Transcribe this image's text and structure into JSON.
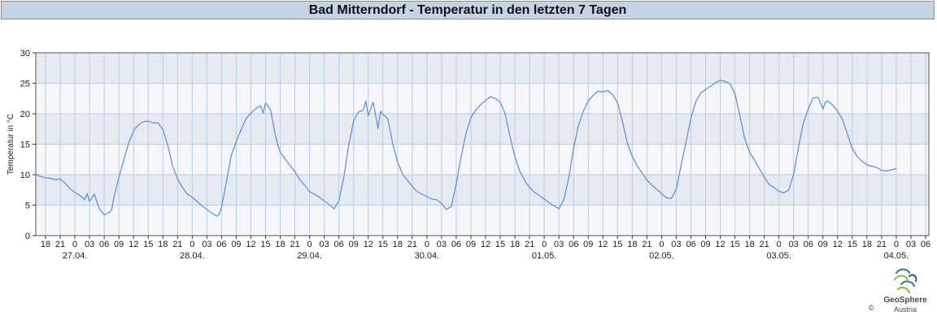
{
  "title": "Bad Mitterndorf - Temperatur in den letzten 7 Tagen",
  "logo": {
    "brand": "GeoSphere",
    "sub": "Austria",
    "copyright": "©"
  },
  "colors": {
    "line": "#5b8ad8",
    "band_dark": "#e6ebf2",
    "band_light": "#f5f7fa",
    "grid": "#b9cde3",
    "title_bg": "#c6d3e3"
  },
  "chart_data": {
    "type": "line",
    "title": "Bad Mitterndorf - Temperatur in den letzten 7 Tagen",
    "ylabel": "Temperatur in °C",
    "xlabel": "",
    "ylim": [
      0,
      30
    ],
    "yticks": [
      0,
      5,
      10,
      15,
      20,
      25,
      30
    ],
    "xlim": [
      "2025-04-26T16:00",
      "2025-05-04T06:40"
    ],
    "hour_ticks": [
      {
        "t": "2025-04-26T18:00",
        "label": "18"
      },
      {
        "t": "2025-04-26T21:00",
        "label": "21"
      },
      {
        "t": "2025-04-27T00:00",
        "label": "0"
      },
      {
        "t": "2025-04-27T03:00",
        "label": "03"
      },
      {
        "t": "2025-04-27T06:00",
        "label": "06"
      },
      {
        "t": "2025-04-27T09:00",
        "label": "09"
      },
      {
        "t": "2025-04-27T12:00",
        "label": "12"
      },
      {
        "t": "2025-04-27T15:00",
        "label": "15"
      },
      {
        "t": "2025-04-27T18:00",
        "label": "18"
      },
      {
        "t": "2025-04-27T21:00",
        "label": "21"
      },
      {
        "t": "2025-04-28T00:00",
        "label": "0"
      },
      {
        "t": "2025-04-28T03:00",
        "label": "03"
      },
      {
        "t": "2025-04-28T06:00",
        "label": "06"
      },
      {
        "t": "2025-04-28T09:00",
        "label": "09"
      },
      {
        "t": "2025-04-28T12:00",
        "label": "12"
      },
      {
        "t": "2025-04-28T15:00",
        "label": "15"
      },
      {
        "t": "2025-04-28T18:00",
        "label": "18"
      },
      {
        "t": "2025-04-28T21:00",
        "label": "21"
      },
      {
        "t": "2025-04-29T00:00",
        "label": "0"
      },
      {
        "t": "2025-04-29T03:00",
        "label": "03"
      },
      {
        "t": "2025-04-29T06:00",
        "label": "06"
      },
      {
        "t": "2025-04-29T09:00",
        "label": "09"
      },
      {
        "t": "2025-04-29T12:00",
        "label": "12"
      },
      {
        "t": "2025-04-29T15:00",
        "label": "15"
      },
      {
        "t": "2025-04-29T18:00",
        "label": "18"
      },
      {
        "t": "2025-04-29T21:00",
        "label": "21"
      },
      {
        "t": "2025-04-30T00:00",
        "label": "0"
      },
      {
        "t": "2025-04-30T03:00",
        "label": "03"
      },
      {
        "t": "2025-04-30T06:00",
        "label": "06"
      },
      {
        "t": "2025-04-30T09:00",
        "label": "09"
      },
      {
        "t": "2025-04-30T12:00",
        "label": "12"
      },
      {
        "t": "2025-04-30T15:00",
        "label": "15"
      },
      {
        "t": "2025-04-30T18:00",
        "label": "18"
      },
      {
        "t": "2025-04-30T21:00",
        "label": "21"
      },
      {
        "t": "2025-05-01T00:00",
        "label": "0"
      },
      {
        "t": "2025-05-01T03:00",
        "label": "03"
      },
      {
        "t": "2025-05-01T06:00",
        "label": "06"
      },
      {
        "t": "2025-05-01T09:00",
        "label": "09"
      },
      {
        "t": "2025-05-01T12:00",
        "label": "12"
      },
      {
        "t": "2025-05-01T15:00",
        "label": "15"
      },
      {
        "t": "2025-05-01T18:00",
        "label": "18"
      },
      {
        "t": "2025-05-01T21:00",
        "label": "21"
      },
      {
        "t": "2025-05-02T00:00",
        "label": "0"
      },
      {
        "t": "2025-05-02T03:00",
        "label": "03"
      },
      {
        "t": "2025-05-02T06:00",
        "label": "06"
      },
      {
        "t": "2025-05-02T09:00",
        "label": "09"
      },
      {
        "t": "2025-05-02T12:00",
        "label": "12"
      },
      {
        "t": "2025-05-02T15:00",
        "label": "15"
      },
      {
        "t": "2025-05-02T18:00",
        "label": "18"
      },
      {
        "t": "2025-05-02T21:00",
        "label": "21"
      },
      {
        "t": "2025-05-03T00:00",
        "label": "0"
      },
      {
        "t": "2025-05-03T03:00",
        "label": "03"
      },
      {
        "t": "2025-05-03T06:00",
        "label": "06"
      },
      {
        "t": "2025-05-03T09:00",
        "label": "09"
      },
      {
        "t": "2025-05-03T12:00",
        "label": "12"
      },
      {
        "t": "2025-05-03T15:00",
        "label": "15"
      },
      {
        "t": "2025-05-03T18:00",
        "label": "18"
      },
      {
        "t": "2025-05-03T21:00",
        "label": "21"
      },
      {
        "t": "2025-05-04T00:00",
        "label": "0"
      },
      {
        "t": "2025-05-04T03:00",
        "label": "03"
      },
      {
        "t": "2025-05-04T06:00",
        "label": "06"
      }
    ],
    "date_ticks": [
      {
        "t": "2025-04-27T00:00",
        "label": "27.04."
      },
      {
        "t": "2025-04-28T00:00",
        "label": "28.04."
      },
      {
        "t": "2025-04-29T00:00",
        "label": "29.04."
      },
      {
        "t": "2025-04-30T00:00",
        "label": "30.04."
      },
      {
        "t": "2025-05-01T00:00",
        "label": "01.05."
      },
      {
        "t": "2025-05-02T00:00",
        "label": "02.05."
      },
      {
        "t": "2025-05-03T00:00",
        "label": "03.05."
      },
      {
        "t": "2025-05-04T00:00",
        "label": "04.05."
      }
    ],
    "grid": true,
    "series": [
      {
        "points": [
          [
            "2025-04-26T16:00",
            10.1
          ],
          [
            "2025-04-26T17:00",
            9.7
          ],
          [
            "2025-04-26T18:00",
            9.5
          ],
          [
            "2025-04-26T19:00",
            9.4
          ],
          [
            "2025-04-26T20:00",
            9.2
          ],
          [
            "2025-04-26T21:00",
            9.3
          ],
          [
            "2025-04-26T22:00",
            8.6
          ],
          [
            "2025-04-26T23:00",
            7.7
          ],
          [
            "2025-04-27T00:00",
            7.1
          ],
          [
            "2025-04-27T01:00",
            6.6
          ],
          [
            "2025-04-27T02:00",
            5.9
          ],
          [
            "2025-04-27T02:30",
            6.9
          ],
          [
            "2025-04-27T03:00",
            5.6
          ],
          [
            "2025-04-27T04:00",
            6.8
          ],
          [
            "2025-04-27T05:00",
            4.4
          ],
          [
            "2025-04-27T06:00",
            3.4
          ],
          [
            "2025-04-27T07:00",
            3.8
          ],
          [
            "2025-04-27T07:30",
            4.2
          ],
          [
            "2025-04-27T08:00",
            6.4
          ],
          [
            "2025-04-27T09:00",
            9.6
          ],
          [
            "2025-04-27T10:00",
            12.4
          ],
          [
            "2025-04-27T11:00",
            15.2
          ],
          [
            "2025-04-27T12:00",
            17.2
          ],
          [
            "2025-04-27T13:00",
            18.2
          ],
          [
            "2025-04-27T14:00",
            18.7
          ],
          [
            "2025-04-27T15:00",
            18.8
          ],
          [
            "2025-04-27T16:00",
            18.5
          ],
          [
            "2025-04-27T17:00",
            18.5
          ],
          [
            "2025-04-27T18:00",
            17.4
          ],
          [
            "2025-04-27T19:00",
            14.8
          ],
          [
            "2025-04-27T20:00",
            11.4
          ],
          [
            "2025-04-27T21:00",
            9.3
          ],
          [
            "2025-04-27T22:00",
            7.9
          ],
          [
            "2025-04-27T23:00",
            6.8
          ],
          [
            "2025-04-28T00:00",
            6.3
          ],
          [
            "2025-04-28T01:00",
            5.6
          ],
          [
            "2025-04-28T02:00",
            4.9
          ],
          [
            "2025-04-28T03:00",
            4.3
          ],
          [
            "2025-04-28T04:00",
            3.7
          ],
          [
            "2025-04-28T05:00",
            3.2
          ],
          [
            "2025-04-28T05:30",
            3.5
          ],
          [
            "2025-04-28T06:00",
            4.7
          ],
          [
            "2025-04-28T07:00",
            8.8
          ],
          [
            "2025-04-28T08:00",
            13.2
          ],
          [
            "2025-04-28T09:00",
            15.4
          ],
          [
            "2025-04-28T10:00",
            17.4
          ],
          [
            "2025-04-28T11:00",
            19.2
          ],
          [
            "2025-04-28T12:00",
            20.1
          ],
          [
            "2025-04-28T13:00",
            20.9
          ],
          [
            "2025-04-28T14:00",
            21.3
          ],
          [
            "2025-04-28T14:30",
            20.1
          ],
          [
            "2025-04-28T15:00",
            21.8
          ],
          [
            "2025-04-28T16:00",
            20.7
          ],
          [
            "2025-04-28T17:00",
            16.5
          ],
          [
            "2025-04-28T17:30",
            14.9
          ],
          [
            "2025-04-28T18:00",
            13.7
          ],
          [
            "2025-04-28T19:00",
            12.6
          ],
          [
            "2025-04-28T20:00",
            11.5
          ],
          [
            "2025-04-28T21:00",
            10.5
          ],
          [
            "2025-04-28T22:00",
            9.2
          ],
          [
            "2025-04-28T23:00",
            8.3
          ],
          [
            "2025-04-29T00:00",
            7.2
          ],
          [
            "2025-04-29T01:00",
            6.8
          ],
          [
            "2025-04-29T02:00",
            6.3
          ],
          [
            "2025-04-29T03:00",
            5.7
          ],
          [
            "2025-04-29T04:00",
            5.1
          ],
          [
            "2025-04-29T05:00",
            4.4
          ],
          [
            "2025-04-29T06:00",
            5.7
          ],
          [
            "2025-04-29T07:00",
            9.6
          ],
          [
            "2025-04-29T08:00",
            14.8
          ],
          [
            "2025-04-29T09:00",
            18.8
          ],
          [
            "2025-04-29T10:00",
            20.3
          ],
          [
            "2025-04-29T11:00",
            20.6
          ],
          [
            "2025-04-29T11:30",
            22.1
          ],
          [
            "2025-04-29T12:00",
            19.7
          ],
          [
            "2025-04-29T13:00",
            21.9
          ],
          [
            "2025-04-29T14:00",
            17.6
          ],
          [
            "2025-04-29T14:30",
            20.4
          ],
          [
            "2025-04-29T15:00",
            19.9
          ],
          [
            "2025-04-29T16:00",
            19.2
          ],
          [
            "2025-04-29T17:00",
            15.1
          ],
          [
            "2025-04-29T18:00",
            12.1
          ],
          [
            "2025-04-29T19:00",
            10.1
          ],
          [
            "2025-04-29T20:00",
            9.1
          ],
          [
            "2025-04-29T21:00",
            8.1
          ],
          [
            "2025-04-29T22:00",
            7.2
          ],
          [
            "2025-04-29T23:00",
            6.8
          ],
          [
            "2025-04-30T00:00",
            6.4
          ],
          [
            "2025-04-30T01:00",
            6.0
          ],
          [
            "2025-04-30T02:00",
            5.9
          ],
          [
            "2025-04-30T03:00",
            5.3
          ],
          [
            "2025-04-30T04:00",
            4.3
          ],
          [
            "2025-04-30T05:00",
            4.8
          ],
          [
            "2025-04-30T06:00",
            8.5
          ],
          [
            "2025-04-30T07:00",
            13.0
          ],
          [
            "2025-04-30T08:00",
            16.8
          ],
          [
            "2025-04-30T09:00",
            19.4
          ],
          [
            "2025-04-30T10:00",
            20.6
          ],
          [
            "2025-04-30T11:00",
            21.5
          ],
          [
            "2025-04-30T12:00",
            22.2
          ],
          [
            "2025-04-30T13:00",
            22.8
          ],
          [
            "2025-04-30T14:00",
            22.5
          ],
          [
            "2025-04-30T15:00",
            21.9
          ],
          [
            "2025-04-30T16:00",
            20.0
          ],
          [
            "2025-04-30T17:00",
            16.2
          ],
          [
            "2025-04-30T18:00",
            12.9
          ],
          [
            "2025-04-30T19:00",
            10.6
          ],
          [
            "2025-04-30T20:00",
            9.0
          ],
          [
            "2025-04-30T21:00",
            7.9
          ],
          [
            "2025-04-30T22:00",
            7.1
          ],
          [
            "2025-04-30T23:00",
            6.6
          ],
          [
            "2025-05-01T00:00",
            6.0
          ],
          [
            "2025-05-01T01:00",
            5.4
          ],
          [
            "2025-05-01T02:00",
            4.9
          ],
          [
            "2025-05-01T03:00",
            4.4
          ],
          [
            "2025-05-01T04:00",
            5.9
          ],
          [
            "2025-05-01T05:00",
            9.4
          ],
          [
            "2025-05-01T06:00",
            14.3
          ],
          [
            "2025-05-01T07:00",
            18.1
          ],
          [
            "2025-05-01T08:00",
            20.4
          ],
          [
            "2025-05-01T09:00",
            22.1
          ],
          [
            "2025-05-01T10:00",
            23.0
          ],
          [
            "2025-05-01T11:00",
            23.7
          ],
          [
            "2025-05-01T12:00",
            23.6
          ],
          [
            "2025-05-01T13:00",
            23.8
          ],
          [
            "2025-05-01T14:00",
            23.1
          ],
          [
            "2025-05-01T15:00",
            21.8
          ],
          [
            "2025-05-01T16:00",
            18.7
          ],
          [
            "2025-05-01T17:00",
            15.2
          ],
          [
            "2025-05-01T18:00",
            13.0
          ],
          [
            "2025-05-01T19:00",
            11.5
          ],
          [
            "2025-05-01T20:00",
            10.3
          ],
          [
            "2025-05-01T21:00",
            9.1
          ],
          [
            "2025-05-01T22:00",
            8.3
          ],
          [
            "2025-05-01T23:00",
            7.6
          ],
          [
            "2025-05-02T00:00",
            6.9
          ],
          [
            "2025-05-02T01:00",
            6.2
          ],
          [
            "2025-05-02T02:00",
            6.1
          ],
          [
            "2025-05-02T03:00",
            7.6
          ],
          [
            "2025-05-02T04:00",
            11.6
          ],
          [
            "2025-05-02T05:00",
            15.4
          ],
          [
            "2025-05-02T06:00",
            19.3
          ],
          [
            "2025-05-02T07:00",
            22.0
          ],
          [
            "2025-05-02T08:00",
            23.4
          ],
          [
            "2025-05-02T09:00",
            24.0
          ],
          [
            "2025-05-02T10:00",
            24.5
          ],
          [
            "2025-05-02T11:00",
            25.1
          ],
          [
            "2025-05-02T12:00",
            25.5
          ],
          [
            "2025-05-02T13:00",
            25.3
          ],
          [
            "2025-05-02T14:00",
            24.9
          ],
          [
            "2025-05-02T15:00",
            23.3
          ],
          [
            "2025-05-02T16:00",
            19.7
          ],
          [
            "2025-05-02T17:00",
            15.9
          ],
          [
            "2025-05-02T18:00",
            13.7
          ],
          [
            "2025-05-02T19:00",
            12.4
          ],
          [
            "2025-05-02T20:00",
            11.0
          ],
          [
            "2025-05-02T21:00",
            9.6
          ],
          [
            "2025-05-02T22:00",
            8.4
          ],
          [
            "2025-05-02T23:00",
            7.9
          ],
          [
            "2025-05-03T00:00",
            7.3
          ],
          [
            "2025-05-03T01:00",
            7.0
          ],
          [
            "2025-05-03T02:00",
            7.5
          ],
          [
            "2025-05-03T03:00",
            10.0
          ],
          [
            "2025-05-03T04:00",
            14.5
          ],
          [
            "2025-05-03T05:00",
            18.5
          ],
          [
            "2025-05-03T06:00",
            20.8
          ],
          [
            "2025-05-03T07:00",
            22.6
          ],
          [
            "2025-05-03T08:00",
            22.7
          ],
          [
            "2025-05-03T09:00",
            20.8
          ],
          [
            "2025-05-03T09:30",
            21.9
          ],
          [
            "2025-05-03T10:00",
            22.1
          ],
          [
            "2025-05-03T11:00",
            21.4
          ],
          [
            "2025-05-03T12:00",
            20.4
          ],
          [
            "2025-05-03T13:00",
            19.1
          ],
          [
            "2025-05-03T14:00",
            16.7
          ],
          [
            "2025-05-03T15:00",
            14.3
          ],
          [
            "2025-05-03T16:00",
            13.0
          ],
          [
            "2025-05-03T17:00",
            12.2
          ],
          [
            "2025-05-03T18:00",
            11.6
          ],
          [
            "2025-05-03T19:00",
            11.4
          ],
          [
            "2025-05-03T20:00",
            11.2
          ],
          [
            "2025-05-03T21:00",
            10.7
          ],
          [
            "2025-05-03T22:00",
            10.6
          ],
          [
            "2025-05-03T23:00",
            10.8
          ],
          [
            "2025-05-04T00:00",
            11.0
          ]
        ]
      }
    ]
  }
}
